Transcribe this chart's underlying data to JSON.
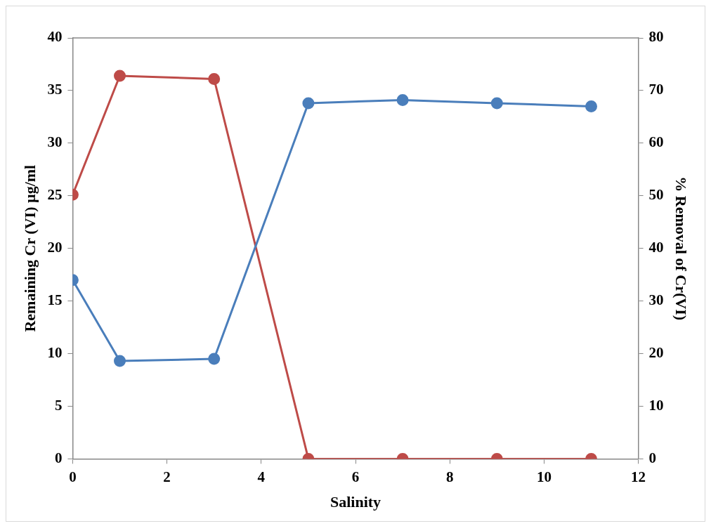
{
  "chart_data": {
    "type": "line",
    "xlabel": "Salinity",
    "ylabel": "Remaining Cr (VI) µg/ml",
    "y2label": "% Removal of Cr(VI)",
    "x": [
      0,
      1,
      3,
      5,
      7,
      9,
      11
    ],
    "series": [
      {
        "color": "#4a7ebb",
        "values": [
          17,
          9.3,
          9.5,
          33.8,
          34.1,
          33.8,
          33.5
        ]
      },
      {
        "color": "#be4b48",
        "axis": "y2",
        "values": [
          50.2,
          72.8,
          72.2,
          0,
          0,
          0,
          0
        ]
      }
    ],
    "xlim": [
      0,
      12
    ],
    "xticks": [
      0,
      2,
      4,
      6,
      8,
      10,
      12
    ],
    "ylim": [
      0,
      40
    ],
    "yticks": [
      0,
      5,
      10,
      15,
      20,
      25,
      30,
      35,
      40
    ],
    "y2lim": [
      0,
      80
    ],
    "y2ticks": [
      0,
      10,
      20,
      30,
      40,
      50,
      60,
      70,
      80
    ],
    "marker": "circle",
    "line_style": "solid",
    "grid": false,
    "legend": false
  }
}
